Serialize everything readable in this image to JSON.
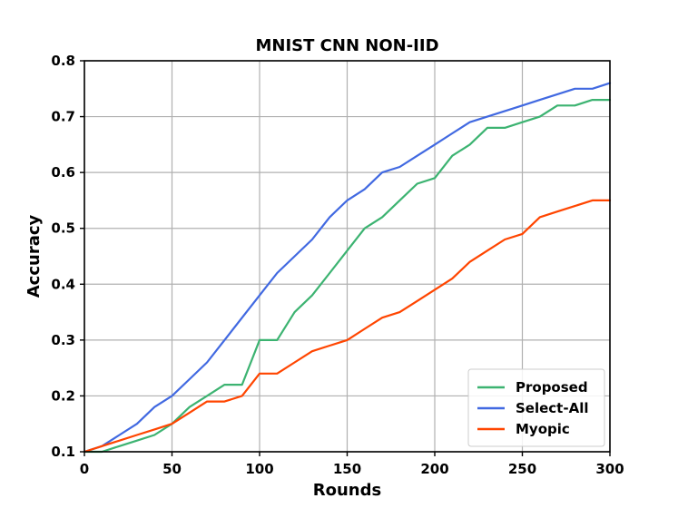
{
  "chart_data": {
    "type": "line",
    "title": "MNIST CNN NON-IID",
    "xlabel": "Rounds",
    "ylabel": "Accuracy",
    "xlim": [
      0,
      300
    ],
    "ylim": [
      0.1,
      0.8
    ],
    "xticks": [
      0,
      50,
      100,
      150,
      200,
      250,
      300
    ],
    "yticks": [
      0.1,
      0.2,
      0.3,
      0.4,
      0.5,
      0.6,
      0.7,
      0.8
    ],
    "xtick_labels": [
      "0",
      "50",
      "100",
      "150",
      "200",
      "250",
      "300"
    ],
    "ytick_labels": [
      "0.1",
      "0.2",
      "0.3",
      "0.4",
      "0.5",
      "0.6",
      "0.7",
      "0.8"
    ],
    "grid": true,
    "legend_position": "bottom-right",
    "series": [
      {
        "name": "Proposed",
        "color": "#3cb371",
        "x": [
          0,
          10,
          20,
          30,
          40,
          50,
          60,
          70,
          80,
          90,
          100,
          110,
          120,
          130,
          140,
          150,
          160,
          170,
          180,
          190,
          200,
          210,
          220,
          230,
          240,
          250,
          260,
          270,
          280,
          290,
          300
        ],
        "y": [
          0.1,
          0.1,
          0.11,
          0.12,
          0.13,
          0.15,
          0.18,
          0.2,
          0.22,
          0.22,
          0.3,
          0.3,
          0.35,
          0.38,
          0.42,
          0.46,
          0.5,
          0.52,
          0.55,
          0.58,
          0.59,
          0.63,
          0.65,
          0.68,
          0.68,
          0.69,
          0.7,
          0.72,
          0.72,
          0.73,
          0.73
        ]
      },
      {
        "name": "Select-All",
        "color": "#4169e1",
        "x": [
          0,
          10,
          20,
          30,
          40,
          50,
          60,
          70,
          80,
          90,
          100,
          110,
          120,
          130,
          140,
          150,
          160,
          170,
          180,
          190,
          200,
          210,
          220,
          230,
          240,
          250,
          260,
          270,
          280,
          290,
          300
        ],
        "y": [
          0.1,
          0.11,
          0.13,
          0.15,
          0.18,
          0.2,
          0.23,
          0.26,
          0.3,
          0.34,
          0.38,
          0.42,
          0.45,
          0.48,
          0.52,
          0.55,
          0.57,
          0.6,
          0.61,
          0.63,
          0.65,
          0.67,
          0.69,
          0.7,
          0.71,
          0.72,
          0.73,
          0.74,
          0.75,
          0.75,
          0.76
        ]
      },
      {
        "name": "Myopic",
        "color": "#ff4500",
        "x": [
          0,
          10,
          20,
          30,
          40,
          50,
          60,
          70,
          80,
          90,
          100,
          110,
          120,
          130,
          140,
          150,
          160,
          170,
          180,
          190,
          200,
          210,
          220,
          230,
          240,
          250,
          260,
          270,
          280,
          290,
          300
        ],
        "y": [
          0.1,
          0.11,
          0.12,
          0.13,
          0.14,
          0.15,
          0.17,
          0.19,
          0.19,
          0.2,
          0.24,
          0.24,
          0.26,
          0.28,
          0.29,
          0.3,
          0.32,
          0.34,
          0.35,
          0.37,
          0.39,
          0.41,
          0.44,
          0.46,
          0.48,
          0.49,
          0.52,
          0.53,
          0.54,
          0.55,
          0.55
        ]
      }
    ]
  }
}
